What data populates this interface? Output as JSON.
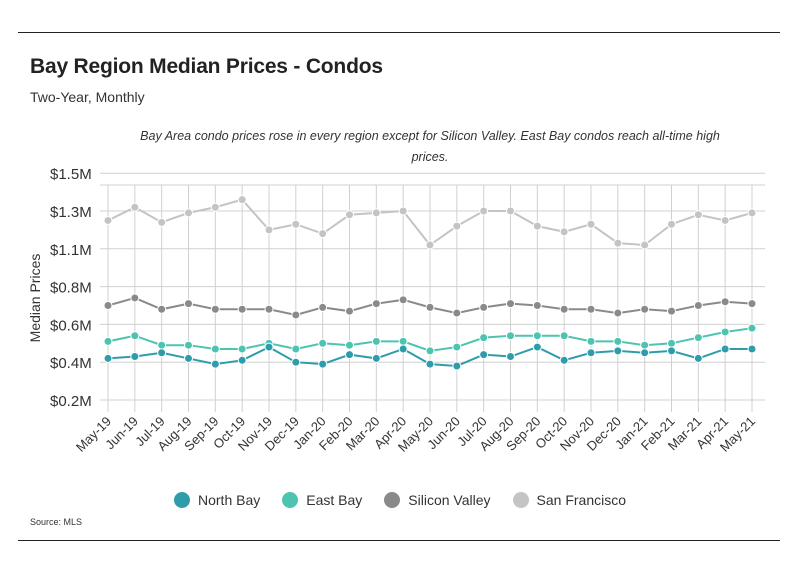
{
  "title": "Bay Region Median Prices - Condos",
  "subtitle": "Two-Year, Monthly",
  "annotation": "Bay Area condo prices rose in every region except for Silicon Valley. East Bay condos reach all-time high prices.",
  "source": "Source:  MLS",
  "chart_data": {
    "type": "line",
    "title": "Bay Region Median Prices - Condos",
    "subtitle": "Two-Year, Monthly",
    "ylabel": "Median Prices",
    "xlabel": "",
    "ylim": [
      0.15,
      1.5
    ],
    "y_ticks": [
      {
        "value": 0.2,
        "label": "$0.2M"
      },
      {
        "value": 0.4,
        "label": "$0.4M"
      },
      {
        "value": 0.6,
        "label": "$0.6M"
      },
      {
        "value": 0.8,
        "label": "$0.8M"
      },
      {
        "value": 1.1,
        "label": "$1.1M"
      },
      {
        "value": 1.3,
        "label": "$1.3M"
      },
      {
        "value": 1.5,
        "label": "$1.5M"
      }
    ],
    "grid": true,
    "legend": "bottom",
    "categories": [
      "May-19",
      "Jun-19",
      "Jul-19",
      "Aug-19",
      "Sep-19",
      "Oct-19",
      "Nov-19",
      "Dec-19",
      "Jan-20",
      "Feb-20",
      "Mar-20",
      "Apr-20",
      "May-20",
      "Jun-20",
      "Jul-20",
      "Aug-20",
      "Sep-20",
      "Oct-20",
      "Nov-20",
      "Dec-20",
      "Jan-21",
      "Feb-21",
      "Mar-21",
      "Apr-21",
      "May-21"
    ],
    "series": [
      {
        "name": "North Bay",
        "color": "#2e9cab",
        "values": [
          0.42,
          0.43,
          0.45,
          0.42,
          0.39,
          0.41,
          0.48,
          0.4,
          0.39,
          0.44,
          0.42,
          0.47,
          0.39,
          0.38,
          0.44,
          0.43,
          0.48,
          0.41,
          0.45,
          0.46,
          0.45,
          0.46,
          0.42,
          0.47,
          0.47
        ]
      },
      {
        "name": "East Bay",
        "color": "#4cc4b0",
        "values": [
          0.51,
          0.54,
          0.49,
          0.49,
          0.47,
          0.47,
          0.5,
          0.47,
          0.5,
          0.49,
          0.51,
          0.51,
          0.46,
          0.48,
          0.53,
          0.54,
          0.54,
          0.54,
          0.51,
          0.51,
          0.49,
          0.5,
          0.53,
          0.56,
          0.58
        ]
      },
      {
        "name": "Silicon Valley",
        "color": "#8a8a8a",
        "values": [
          0.7,
          0.74,
          0.68,
          0.71,
          0.68,
          0.68,
          0.68,
          0.65,
          0.69,
          0.67,
          0.71,
          0.73,
          0.69,
          0.66,
          0.69,
          0.71,
          0.7,
          0.68,
          0.68,
          0.66,
          0.68,
          0.67,
          0.7,
          0.72,
          0.71
        ]
      },
      {
        "name": "San Francisco",
        "color": "#c4c4c4",
        "values": [
          1.25,
          1.32,
          1.24,
          1.29,
          1.32,
          1.36,
          1.2,
          1.23,
          1.18,
          1.28,
          1.29,
          1.3,
          1.12,
          1.22,
          1.3,
          1.3,
          1.22,
          1.19,
          1.23,
          1.13,
          1.12,
          1.23,
          1.28,
          1.25,
          1.29
        ]
      }
    ]
  }
}
